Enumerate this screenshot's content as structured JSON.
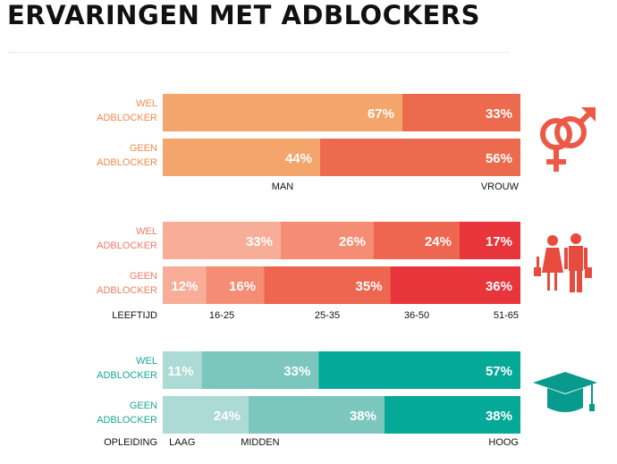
{
  "title": "ERVARINGEN MET ADBLOCKERS",
  "chart_data": [
    {
      "type": "bar",
      "orientation": "horizontal",
      "stacked": true,
      "normalized": true,
      "categories": [
        "WEL ADBLOCKER",
        "GEEN ADBLOCKER"
      ],
      "series": [
        {
          "name": "MAN",
          "values": [
            67,
            44
          ],
          "color": "#f4a56b"
        },
        {
          "name": "VROUW",
          "values": [
            33,
            56
          ],
          "color": "#ec6b4f"
        }
      ],
      "label_color": "#f08a4b",
      "icon": "gender-symbols-icon",
      "icon_color": "#ec5a47",
      "axis_caption": ""
    },
    {
      "type": "bar",
      "orientation": "horizontal",
      "stacked": true,
      "normalized": true,
      "categories": [
        "WEL ADBLOCKER",
        "GEEN ADBLOCKER"
      ],
      "series": [
        {
          "name": "16-25",
          "values": [
            33,
            12
          ],
          "color": "#f8ad98"
        },
        {
          "name": "25-35",
          "values": [
            26,
            16
          ],
          "color": "#f58c74"
        },
        {
          "name": "36-50",
          "values": [
            24,
            35
          ],
          "color": "#ee6650"
        },
        {
          "name": "51-65",
          "values": [
            17,
            36
          ],
          "color": "#e8353b"
        }
      ],
      "label_color": "#ee7c66",
      "icon": "couple-icon",
      "icon_color": "#e84b3d",
      "axis_caption": "LEEFTIJD"
    },
    {
      "type": "bar",
      "orientation": "horizontal",
      "stacked": true,
      "normalized": true,
      "categories": [
        "WEL ADBLOCKER",
        "GEEN ADBLOCKER"
      ],
      "series": [
        {
          "name": "LAAG",
          "values": [
            11,
            24
          ],
          "color": "#acdad4"
        },
        {
          "name": "MIDDEN",
          "values": [
            33,
            38
          ],
          "color": "#7cc7bd"
        },
        {
          "name": "HOOG",
          "values": [
            57,
            38
          ],
          "color": "#05a998"
        }
      ],
      "label_color": "#1aa594",
      "icon": "graduation-cap-icon",
      "icon_color": "#089a8c",
      "axis_caption": "OPLEIDING"
    }
  ]
}
